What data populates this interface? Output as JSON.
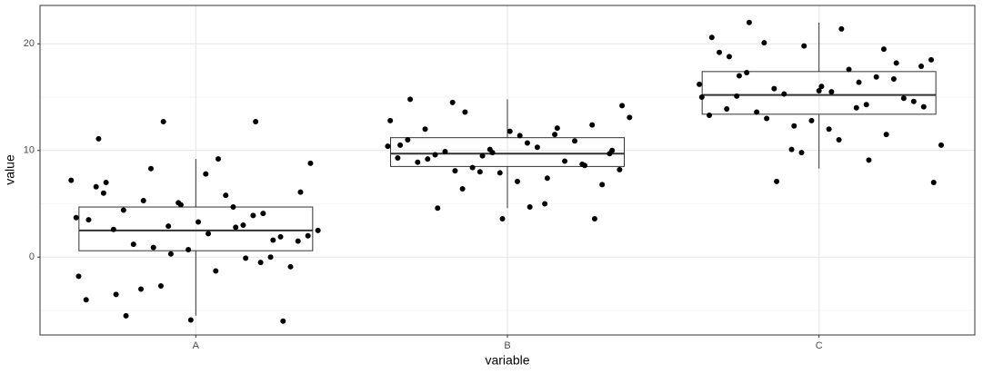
{
  "chart_data": {
    "type": "box",
    "x_label": "variable",
    "y_label": "value",
    "categories": [
      "A",
      "B",
      "C"
    ],
    "boxes": [
      {
        "whisker_low": -5.5,
        "q1": 0.6,
        "median": 2.5,
        "q3": 4.7,
        "whisker_high": 9.2
      },
      {
        "whisker_low": 4.6,
        "q1": 8.5,
        "median": 9.7,
        "q3": 11.2,
        "whisker_high": 14.8
      },
      {
        "whisker_low": 8.3,
        "q1": 13.4,
        "median": 15.2,
        "q3": 17.4,
        "whisker_high": 22.0
      }
    ],
    "points": [
      [
        7.2,
        12.7,
        12.7,
        11.1,
        -5.9,
        -6.0,
        -5.5,
        9.2,
        8.8,
        0.9,
        -0.1,
        3.5,
        4.9,
        1.6,
        -3.5,
        2.2,
        6.1,
        5.3,
        2.8,
        -1.8,
        0.3,
        4.1,
        7.0,
        3.3,
        -0.9,
        1.2,
        5.8,
        2.5,
        -2.7,
        3.9,
        6.6,
        0.7,
        1.9,
        4.4,
        -1.3,
        2.0,
        8.3,
        3.0,
        -4.0,
        5.1,
        0.0,
        2.6,
        7.8,
        1.5,
        -3.0,
        4.7,
        3.7,
        2.9,
        -0.5,
        6.0
      ],
      [
        14.8,
        3.6,
        3.6,
        4.6,
        4.7,
        14.2,
        13.6,
        12.1,
        10.5,
        9.8,
        8.6,
        9.2,
        11.4,
        10.0,
        8.1,
        7.4,
        12.8,
        9.5,
        10.9,
        8.9,
        11.8,
        6.8,
        9.9,
        10.3,
        13.1,
        8.4,
        9.0,
        11.0,
        7.9,
        12.4,
        9.6,
        10.7,
        8.2,
        6.4,
        11.5,
        9.3,
        10.1,
        8.7,
        12.0,
        7.1,
        9.7,
        14.5,
        5.0,
        10.4,
        8.0
      ],
      [
        22.0,
        21.4,
        7.0,
        7.1,
        9.1,
        20.6,
        19.8,
        18.2,
        17.0,
        15.5,
        14.1,
        13.0,
        16.4,
        15.0,
        12.3,
        11.5,
        18.8,
        16.0,
        14.6,
        13.6,
        17.6,
        10.5,
        15.3,
        16.9,
        19.2,
        12.8,
        14.9,
        17.3,
        11.0,
        18.5,
        15.8,
        14.3,
        13.3,
        9.8,
        16.7,
        15.1,
        12.0,
        17.9,
        20.1,
        14.0,
        16.2,
        10.1,
        19.5,
        13.9,
        15.6
      ]
    ],
    "point_color": "#000000",
    "ylim": [
      -7.3,
      23.6
    ],
    "yticks": [
      0,
      10,
      20
    ],
    "minor_yticks": [
      -5,
      5,
      15
    ],
    "grid": true
  }
}
